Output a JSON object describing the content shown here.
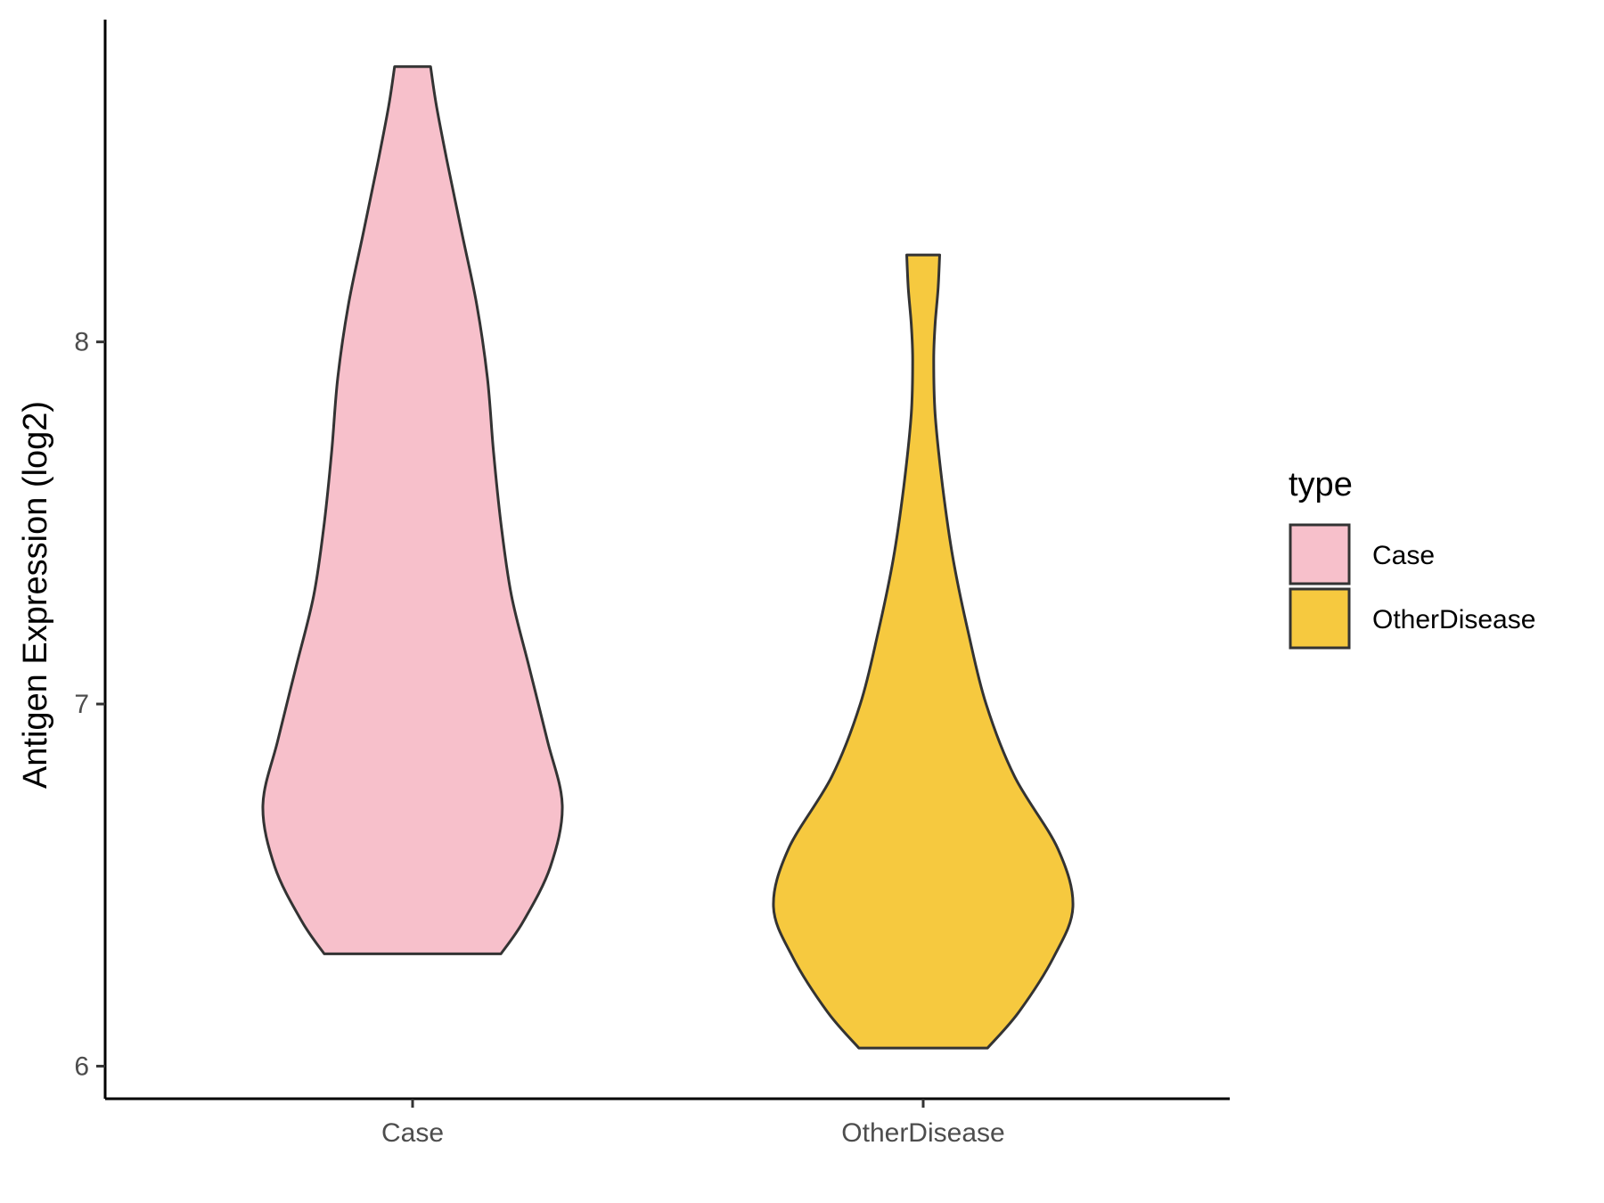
{
  "chart_data": {
    "type": "violin",
    "title": "",
    "xlabel": "",
    "ylabel": "Antigen Expression (log2)",
    "categories": [
      "Case",
      "OtherDisease"
    ],
    "ylim": [
      5.91,
      8.89
    ],
    "yticks": [
      6,
      7,
      8
    ],
    "grid": false,
    "legend": {
      "title": "type",
      "position": "right",
      "entries": [
        {
          "label": "Case",
          "color": "#F7C0CB"
        },
        {
          "label": "OtherDisease",
          "color": "#F6C93F"
        }
      ]
    },
    "series": [
      {
        "name": "Case",
        "color": "#F7C0CB",
        "y_min": 6.31,
        "y_max": 8.76,
        "density_profile": [
          [
            6.31,
            0.59
          ],
          [
            6.4,
            0.74
          ],
          [
            6.55,
            0.92
          ],
          [
            6.72,
            1.0
          ],
          [
            6.9,
            0.9
          ],
          [
            7.1,
            0.78
          ],
          [
            7.3,
            0.66
          ],
          [
            7.5,
            0.59
          ],
          [
            7.7,
            0.54
          ],
          [
            7.9,
            0.5
          ],
          [
            8.1,
            0.43
          ],
          [
            8.3,
            0.33
          ],
          [
            8.5,
            0.23
          ],
          [
            8.65,
            0.16
          ],
          [
            8.76,
            0.12
          ]
        ]
      },
      {
        "name": "OtherDisease",
        "color": "#F6C93F",
        "y_min": 6.05,
        "y_max": 8.24,
        "density_profile": [
          [
            6.05,
            0.43
          ],
          [
            6.15,
            0.64
          ],
          [
            6.3,
            0.87
          ],
          [
            6.44,
            1.0
          ],
          [
            6.6,
            0.9
          ],
          [
            6.8,
            0.61
          ],
          [
            7.0,
            0.42
          ],
          [
            7.2,
            0.3
          ],
          [
            7.4,
            0.2
          ],
          [
            7.6,
            0.13
          ],
          [
            7.8,
            0.08
          ],
          [
            7.95,
            0.07
          ],
          [
            8.05,
            0.08
          ],
          [
            8.15,
            0.1
          ],
          [
            8.24,
            0.11
          ]
        ]
      }
    ]
  }
}
